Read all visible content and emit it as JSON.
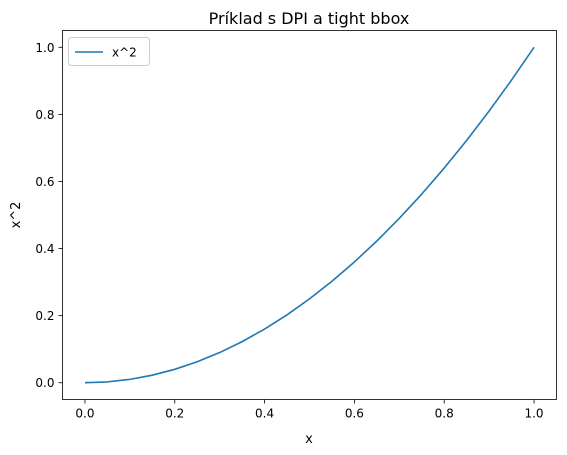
{
  "chart_data": {
    "type": "line",
    "title": "Príklad s DPI a tight bbox",
    "xlabel": "x",
    "ylabel": "x^2",
    "xlim": [
      -0.05,
      1.05
    ],
    "ylim": [
      -0.05,
      1.05
    ],
    "xticks": [
      0.0,
      0.2,
      0.4,
      0.6,
      0.8,
      1.0
    ],
    "xtick_labels": [
      "0.0",
      "0.2",
      "0.4",
      "0.6",
      "0.8",
      "1.0"
    ],
    "yticks": [
      0.0,
      0.2,
      0.4,
      0.6,
      0.8,
      1.0
    ],
    "ytick_labels": [
      "0.0",
      "0.2",
      "0.4",
      "0.6",
      "0.8",
      "1.0"
    ],
    "grid": false,
    "legend": {
      "location": "upper left",
      "entries": [
        "x^2"
      ]
    },
    "series": [
      {
        "name": "x^2",
        "color": "#1f77b4",
        "x": [
          0.0,
          0.05,
          0.1,
          0.15,
          0.2,
          0.25,
          0.3,
          0.35,
          0.4,
          0.45,
          0.5,
          0.55,
          0.6,
          0.65,
          0.7,
          0.75,
          0.8,
          0.85,
          0.9,
          0.95,
          1.0
        ],
        "y": [
          0.0,
          0.0025,
          0.01,
          0.0225,
          0.04,
          0.0625,
          0.09,
          0.1225,
          0.16,
          0.2025,
          0.25,
          0.3025,
          0.36,
          0.4225,
          0.49,
          0.5625,
          0.64,
          0.7225,
          0.81,
          0.9025,
          1.0
        ]
      }
    ]
  }
}
